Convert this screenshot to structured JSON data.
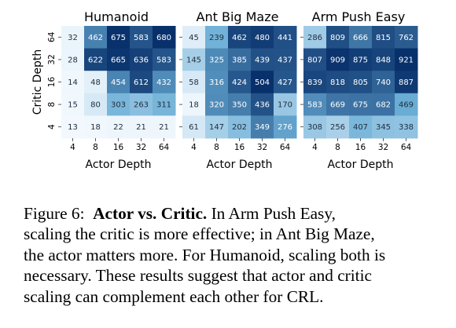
{
  "chart_data": [
    {
      "type": "heatmap",
      "title": "Humanoid",
      "xlabel": "Actor Depth",
      "ylabel": "Critic Depth",
      "x": [
        "4",
        "8",
        "16",
        "32",
        "64"
      ],
      "y": [
        "64",
        "32",
        "16",
        "8",
        "4"
      ],
      "values": [
        [
          32,
          462,
          675,
          583,
          680
        ],
        [
          28,
          622,
          665,
          636,
          583
        ],
        [
          14,
          48,
          454,
          612,
          432
        ],
        [
          15,
          80,
          303,
          263,
          311
        ],
        [
          13,
          18,
          22,
          21,
          21
        ]
      ],
      "vmax": 680
    },
    {
      "type": "heatmap",
      "title": "Ant Big Maze",
      "xlabel": "Actor Depth",
      "ylabel": "",
      "x": [
        "4",
        "8",
        "16",
        "32",
        "64"
      ],
      "y": [
        "64",
        "32",
        "16",
        "8",
        "4"
      ],
      "values": [
        [
          45,
          239,
          462,
          480,
          441
        ],
        [
          145,
          325,
          385,
          439,
          437
        ],
        [
          58,
          316,
          424,
          504,
          427
        ],
        [
          18,
          320,
          350,
          436,
          170
        ],
        [
          61,
          147,
          202,
          349,
          276
        ]
      ],
      "vmax": 504
    },
    {
      "type": "heatmap",
      "title": "Arm Push Easy",
      "xlabel": "Actor Depth",
      "ylabel": "",
      "x": [
        "4",
        "8",
        "16",
        "32",
        "64"
      ],
      "y": [
        "64",
        "32",
        "16",
        "8",
        "4"
      ],
      "values": [
        [
          286,
          809,
          666,
          815,
          762
        ],
        [
          807,
          909,
          875,
          848,
          921
        ],
        [
          839,
          818,
          805,
          740,
          887
        ],
        [
          583,
          669,
          675,
          682,
          469
        ],
        [
          308,
          256,
          407,
          345,
          338
        ]
      ],
      "vmax": 921
    }
  ],
  "caption": {
    "figure_label": "Figure 6:",
    "bold_title": "Actor vs.  Critic.",
    "lines": [
      " In Arm Push Easy,",
      "scaling the critic is more effective; in Ant Big Maze,",
      "the actor matters more. For Humanoid, scaling both is",
      "necessary. These results suggest that actor and critic",
      "scaling can complement each other for CRL."
    ]
  },
  "colors": {
    "low": "#f7fbff",
    "mid": "#6baed6",
    "high": "#08306b",
    "text_dark": "#1f2d3d",
    "text_light": "#ffffff"
  }
}
